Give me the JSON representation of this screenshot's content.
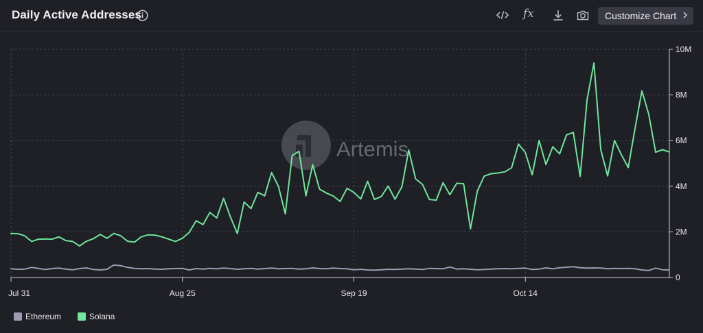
{
  "header": {
    "title": "Daily Active Addresses",
    "customize_label": "Customize Chart",
    "icons": [
      "info-icon",
      "embed-code-icon",
      "formula-fx-icon",
      "download-icon",
      "camera-icon",
      "chevron-right-icon"
    ]
  },
  "watermark": {
    "text": "Artemis"
  },
  "chart_data": {
    "type": "line",
    "title": "Daily Active Addresses",
    "x_tick_labels": [
      "Jul 31",
      "Aug 25",
      "Sep 19",
      "Oct 14"
    ],
    "x_tick_days": [
      0,
      25,
      50,
      75
    ],
    "y_tick_labels": [
      "0",
      "2M",
      "4M",
      "6M",
      "8M",
      "10M"
    ],
    "y_tick_values": [
      0,
      2000000,
      4000000,
      6000000,
      8000000,
      10000000
    ],
    "ylim": [
      0,
      10000000
    ],
    "x_start": "Jul 31",
    "y_axis_position": "right",
    "grid": true,
    "legend_position": "bottom-left",
    "series": [
      {
        "name": "Ethereum",
        "color": "#9d9cb3",
        "values": [
          380000,
          360000,
          370000,
          440000,
          400000,
          350000,
          390000,
          410000,
          370000,
          340000,
          390000,
          420000,
          350000,
          330000,
          360000,
          550000,
          520000,
          440000,
          400000,
          380000,
          390000,
          370000,
          360000,
          380000,
          390000,
          400000,
          330000,
          390000,
          370000,
          400000,
          380000,
          410000,
          390000,
          360000,
          380000,
          400000,
          370000,
          390000,
          410000,
          380000,
          390000,
          400000,
          370000,
          380000,
          420000,
          390000,
          380000,
          410000,
          390000,
          380000,
          340000,
          360000,
          330000,
          320000,
          340000,
          360000,
          350000,
          370000,
          380000,
          370000,
          350000,
          400000,
          390000,
          380000,
          460000,
          370000,
          380000,
          360000,
          340000,
          350000,
          370000,
          380000,
          390000,
          380000,
          400000,
          410000,
          350000,
          370000,
          420000,
          380000,
          430000,
          450000,
          470000,
          430000,
          410000,
          420000,
          410000,
          380000,
          400000,
          390000,
          400000,
          380000,
          330000,
          310000,
          410000,
          340000,
          330000
        ]
      },
      {
        "name": "Solana",
        "color": "#6fe69a",
        "values": [
          1930000,
          1920000,
          1830000,
          1580000,
          1680000,
          1690000,
          1680000,
          1780000,
          1620000,
          1580000,
          1380000,
          1590000,
          1700000,
          1890000,
          1720000,
          1930000,
          1830000,
          1590000,
          1550000,
          1780000,
          1870000,
          1860000,
          1780000,
          1680000,
          1580000,
          1720000,
          1980000,
          2490000,
          2320000,
          2850000,
          2610000,
          3470000,
          2650000,
          1930000,
          3310000,
          3020000,
          3730000,
          3580000,
          4600000,
          3990000,
          2790000,
          5350000,
          5530000,
          3580000,
          4950000,
          3870000,
          3700000,
          3570000,
          3330000,
          3910000,
          3730000,
          3440000,
          4220000,
          3420000,
          3550000,
          4010000,
          3430000,
          3980000,
          5590000,
          4320000,
          4080000,
          3420000,
          3390000,
          4150000,
          3630000,
          4130000,
          4110000,
          2130000,
          3790000,
          4440000,
          4550000,
          4580000,
          4630000,
          4810000,
          5850000,
          5480000,
          4500000,
          6010000,
          4950000,
          5730000,
          5420000,
          6250000,
          6360000,
          4430000,
          7790000,
          9400000,
          5600000,
          4450000,
          6010000,
          5380000,
          4820000,
          6550000,
          8180000,
          7150000,
          5490000,
          5600000,
          5500000
        ]
      }
    ]
  }
}
